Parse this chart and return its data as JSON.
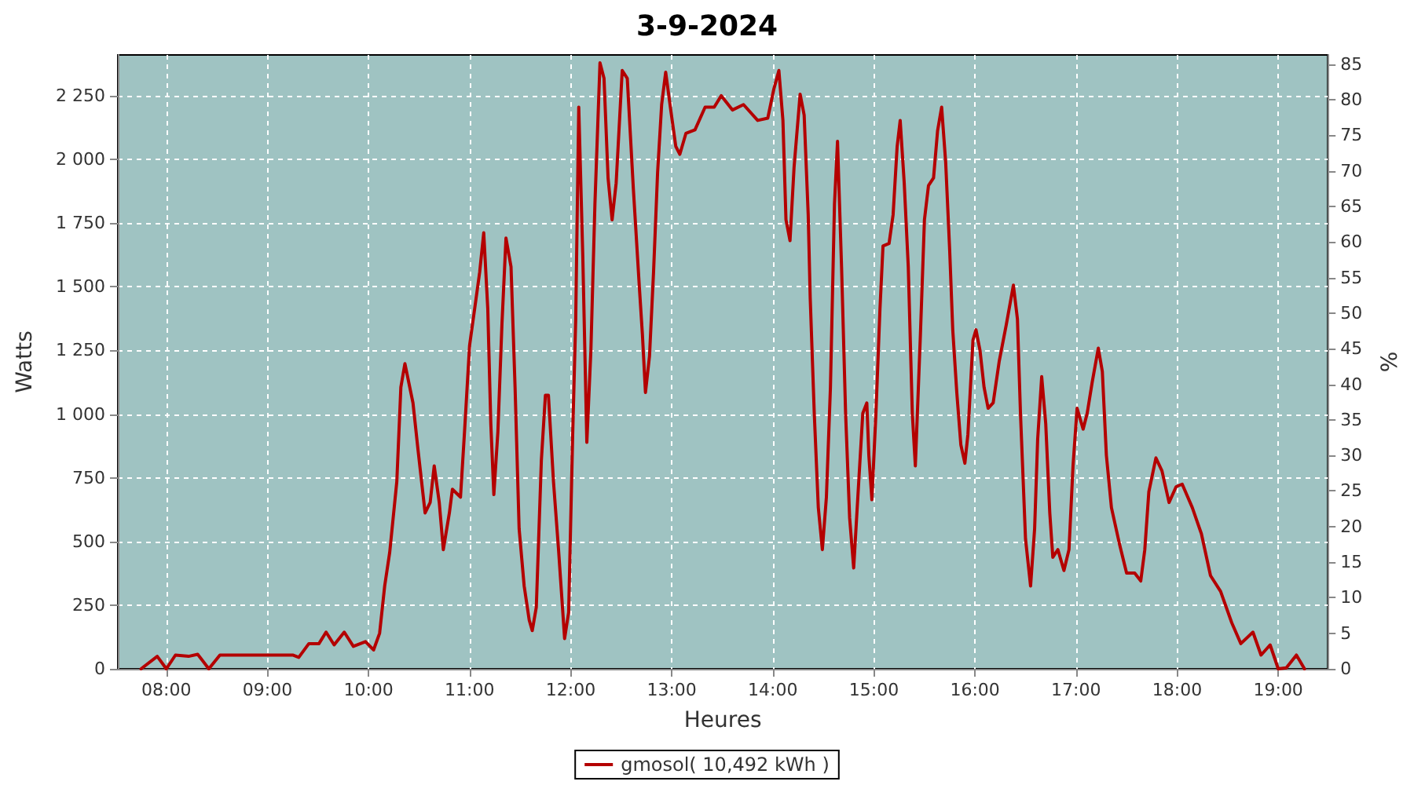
{
  "chart_data": {
    "type": "line",
    "title": "3-9-2024",
    "xlabel": "Heures",
    "ylabel": "Watts",
    "y2label": "%",
    "xlim": [
      7.52,
      19.49
    ],
    "xticks": [
      {
        "value": 8,
        "label": "08:00"
      },
      {
        "value": 9,
        "label": "09:00"
      },
      {
        "value": 10,
        "label": "10:00"
      },
      {
        "value": 11,
        "label": "11:00"
      },
      {
        "value": 12,
        "label": "12:00"
      },
      {
        "value": 13,
        "label": "13:00"
      },
      {
        "value": 14,
        "label": "14:00"
      },
      {
        "value": 15,
        "label": "15:00"
      },
      {
        "value": 16,
        "label": "16:00"
      },
      {
        "value": 17,
        "label": "17:00"
      },
      {
        "value": 18,
        "label": "18:00"
      },
      {
        "value": 19,
        "label": "19:00"
      }
    ],
    "ylim": [
      0,
      2410
    ],
    "yticks": [
      0,
      250,
      500,
      750,
      {
        "value": 1000,
        "label": "1 000"
      },
      {
        "value": 1250,
        "label": "1 250"
      },
      {
        "value": 1500,
        "label": "1 500"
      },
      {
        "value": 1750,
        "label": "1 750"
      },
      {
        "value": 2000,
        "label": "2 000"
      },
      {
        "value": 2250,
        "label": "2 250"
      }
    ],
    "y2lim": [
      0,
      86.3
    ],
    "y2ticks": [
      0,
      5,
      10,
      15,
      20,
      25,
      30,
      35,
      40,
      45,
      50,
      55,
      60,
      65,
      70,
      75,
      80,
      85
    ],
    "grid": true,
    "legend": "bottom",
    "marker": "none",
    "line_style": "solid",
    "series": [
      {
        "name": "gmosol( 10,492 kWh )",
        "color": "#b40000",
        "x": [
          7.75,
          7.91,
          8.0,
          8.09,
          8.22,
          8.31,
          8.42,
          8.53,
          9.25,
          9.31,
          9.41,
          9.51,
          9.58,
          9.66,
          9.76,
          9.85,
          9.97,
          10.05,
          10.11,
          10.16,
          10.21,
          10.28,
          10.32,
          10.36,
          10.44,
          10.49,
          10.56,
          10.61,
          10.65,
          10.7,
          10.74,
          10.8,
          10.83,
          10.91,
          10.95,
          11.0,
          11.05,
          11.1,
          11.14,
          11.18,
          11.21,
          11.24,
          11.28,
          11.32,
          11.36,
          11.41,
          11.45,
          11.49,
          11.54,
          11.59,
          11.62,
          11.66,
          11.71,
          11.75,
          11.78,
          11.83,
          11.88,
          11.94,
          11.98,
          12.02,
          12.05,
          12.08,
          12.12,
          12.16,
          12.2,
          12.24,
          12.29,
          12.33,
          12.37,
          12.41,
          12.45,
          12.51,
          12.56,
          12.62,
          12.68,
          12.71,
          12.74,
          12.78,
          12.82,
          12.86,
          12.9,
          12.94,
          12.99,
          13.04,
          13.08,
          13.14,
          13.23,
          13.33,
          13.42,
          13.49,
          13.6,
          13.71,
          13.85,
          13.95,
          14.01,
          14.06,
          14.1,
          14.13,
          14.17,
          14.21,
          14.27,
          14.31,
          14.35,
          14.37,
          14.41,
          14.45,
          14.49,
          14.53,
          14.57,
          14.61,
          14.64,
          14.68,
          14.72,
          14.76,
          14.8,
          14.85,
          14.89,
          14.93,
          14.95,
          14.98,
          15.02,
          15.06,
          15.09,
          15.15,
          15.19,
          15.23,
          15.26,
          15.3,
          15.34,
          15.38,
          15.41,
          15.46,
          15.5,
          15.54,
          15.59,
          15.63,
          15.67,
          15.71,
          15.75,
          15.78,
          15.82,
          15.86,
          15.9,
          15.93,
          15.98,
          16.01,
          16.05,
          16.09,
          16.13,
          16.18,
          16.24,
          16.31,
          16.38,
          16.42,
          16.45,
          16.5,
          16.55,
          16.59,
          16.62,
          16.66,
          16.7,
          16.74,
          16.77,
          16.82,
          16.88,
          16.93,
          16.97,
          17.01,
          17.07,
          17.11,
          17.16,
          17.22,
          17.26,
          17.3,
          17.35,
          17.43,
          17.5,
          17.58,
          17.64,
          17.68,
          17.72,
          17.79,
          17.85,
          17.92,
          17.99,
          18.05,
          18.15,
          18.24,
          18.33,
          18.43,
          18.54,
          18.63,
          18.75,
          18.83,
          18.92,
          19.0,
          19.08,
          19.18,
          19.26
        ],
        "values": [
          0,
          49,
          0,
          54,
          49,
          57,
          0,
          54,
          54,
          45,
          99,
          99,
          144,
          94,
          144,
          88,
          107,
          74,
          140,
          325,
          458,
          735,
          1105,
          1198,
          1044,
          859,
          612,
          653,
          797,
          653,
          468,
          612,
          705,
          674,
          931,
          1270,
          1413,
          1558,
          1712,
          1413,
          962,
          684,
          931,
          1352,
          1691,
          1578,
          1105,
          550,
          325,
          191,
          150,
          242,
          818,
          1074,
          1074,
          735,
          468,
          119,
          222,
          920,
          1373,
          2205,
          1619,
          889,
          1249,
          1825,
          2379,
          2318,
          1927,
          1763,
          1907,
          2349,
          2318,
          1886,
          1496,
          1311,
          1085,
          1228,
          1558,
          1948,
          2215,
          2342,
          2194,
          2051,
          2020,
          2102,
          2116,
          2205,
          2205,
          2250,
          2194,
          2215,
          2153,
          2162,
          2276,
          2349,
          2153,
          1763,
          1681,
          1968,
          2256,
          2174,
          1783,
          1455,
          1003,
          633,
          468,
          674,
          1105,
          1825,
          2071,
          1578,
          1003,
          592,
          396,
          735,
          1003,
          1044,
          838,
          664,
          1003,
          1413,
          1660,
          1670,
          1783,
          2051,
          2153,
          1907,
          1578,
          1003,
          797,
          1311,
          1763,
          1897,
          1927,
          2112,
          2205,
          1989,
          1640,
          1331,
          1085,
          880,
          807,
          920,
          1290,
          1331,
          1249,
          1105,
          1023,
          1044,
          1208,
          1352,
          1506,
          1373,
          1003,
          510,
          325,
          550,
          900,
          1147,
          962,
          612,
          438,
          468,
          386,
          468,
          797,
          1023,
          941,
          1003,
          1126,
          1259,
          1167,
          838,
          633,
          489,
          376,
          376,
          345,
          468,
          695,
          828,
          777,
          653,
          715,
          725,
          633,
          530,
          366,
          304,
          181,
          99,
          144,
          54,
          94,
          0,
          4,
          54,
          0
        ]
      }
    ]
  }
}
